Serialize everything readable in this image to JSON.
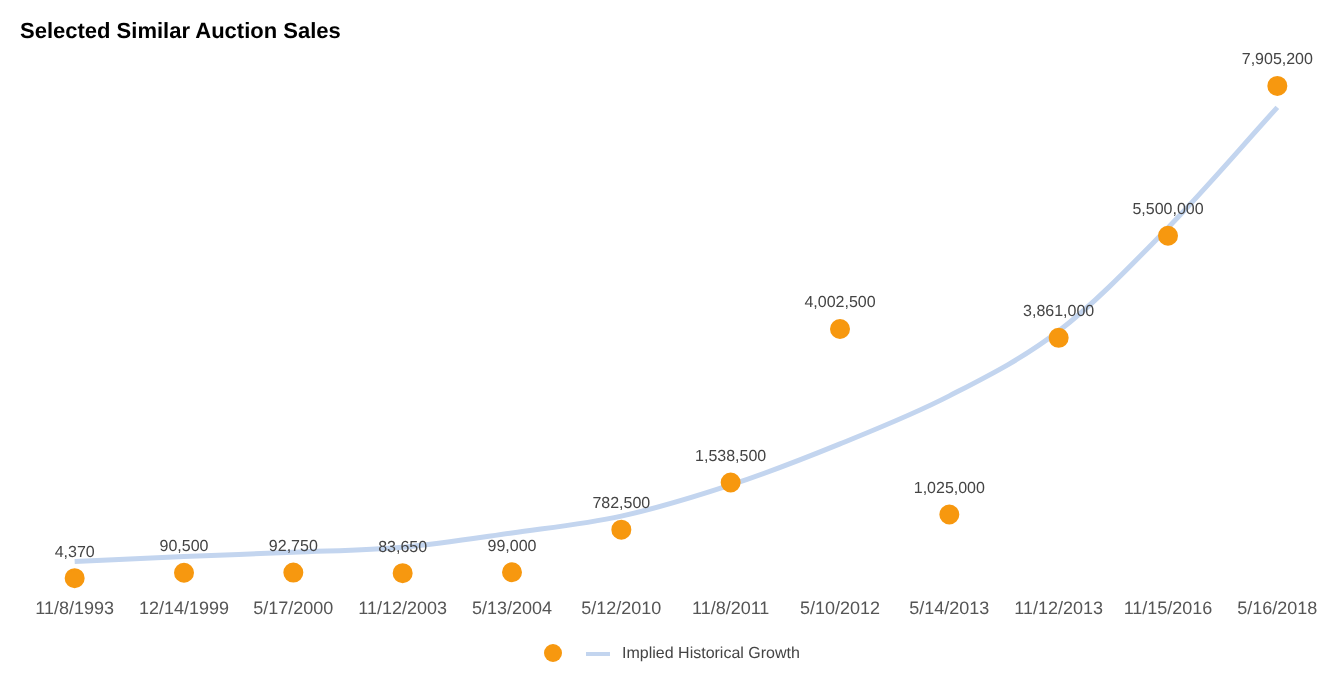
{
  "chart_data": {
    "type": "scatter",
    "title": "Selected Similar Auction Sales",
    "categories": [
      "11/8/1993",
      "12/14/1999",
      "5/17/2000",
      "11/12/2003",
      "5/13/2004",
      "5/12/2010",
      "11/8/2011",
      "5/10/2012",
      "5/14/2013",
      "11/12/2013",
      "11/15/2016",
      "5/16/2018"
    ],
    "series": [
      {
        "color": "#f7980f",
        "values": [
          4370,
          90500,
          92750,
          83650,
          99000,
          782500,
          1538500,
          4002500,
          1025000,
          3861000,
          5500000,
          7905200
        ],
        "value_labels": [
          "4,370",
          "90,500",
          "92,750",
          "83,650",
          "99,000",
          "782,500",
          "1,538,500",
          "4,002,500",
          "1,025,000",
          "3,861,000",
          "5,500,000",
          "7,905,200"
        ]
      },
      {
        "type": "line",
        "name": "Implied Historical Growth",
        "color": "#c3d5ef",
        "values": [
          270000,
          350000,
          420000,
          500000,
          730000,
          1000000,
          1500000,
          2160000,
          2930000,
          3970000,
          5630000,
          7560000
        ]
      }
    ],
    "tick_labels": "x",
    "grid": false,
    "legend": "bottom"
  }
}
